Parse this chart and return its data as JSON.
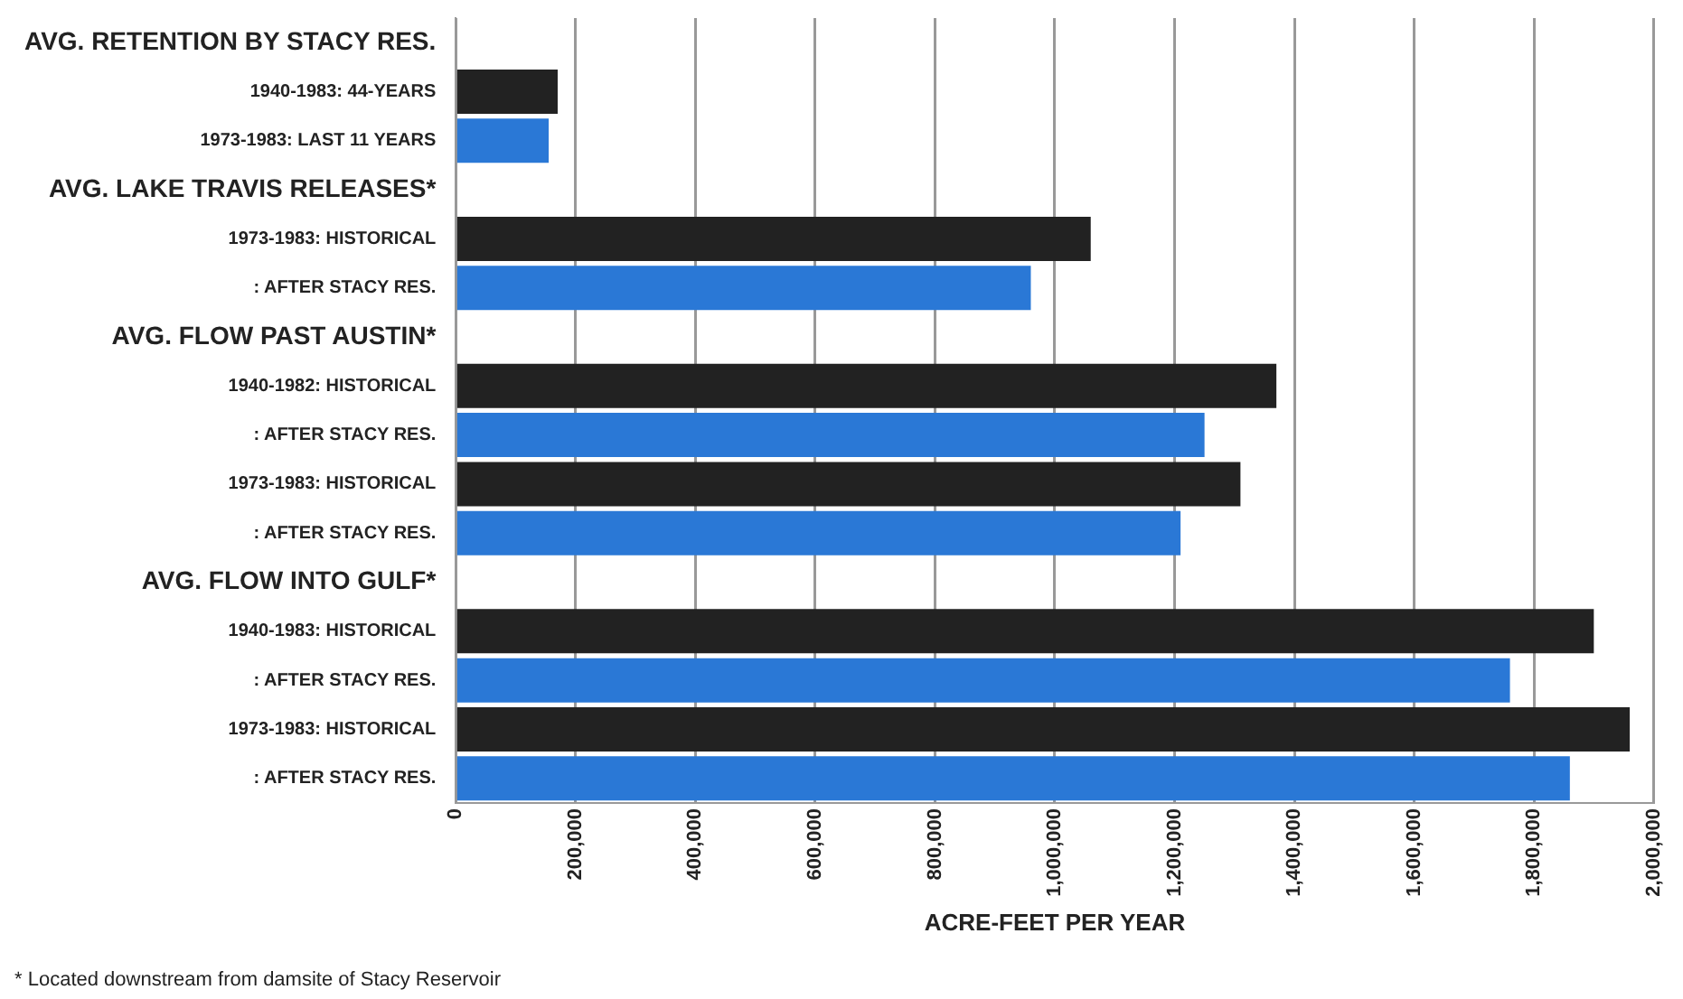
{
  "chart_data": {
    "type": "bar",
    "orientation": "horizontal",
    "xlabel": "ACRE-FEET PER YEAR",
    "categories": [
      "AVG. RETENTION BY STACY RES.",
      "1940-1983: 44-YEARS",
      "1973-1983: LAST 11 YEARS",
      "AVG. LAKE TRAVIS RELEASES*",
      "1973-1983: HISTORICAL",
      ": AFTER STACY RES.",
      "AVG. FLOW PAST AUSTIN*",
      "1940-1982: HISTORICAL",
      ": AFTER STACY RES.",
      "1973-1983: HISTORICAL",
      ": AFTER STACY RES.",
      "AVG. FLOW INTO GULF*",
      "1940-1983: HISTORICAL",
      ": AFTER STACY RES.",
      "1973-1983: HISTORICAL",
      ": AFTER STACY RES."
    ],
    "values": [
      null,
      170000,
      155000,
      null,
      1060000,
      960000,
      null,
      1370000,
      1250000,
      1310000,
      1210000,
      null,
      1900000,
      1760000,
      1960000,
      1860000
    ],
    "colors": [
      "#222222",
      "#222222",
      "#2a78d6",
      "#222222",
      "#222222",
      "#2a78d6",
      "#222222",
      "#222222",
      "#2a78d6",
      "#222222",
      "#2a78d6",
      "#222222",
      "#222222",
      "#2a78d6",
      "#222222",
      "#2a78d6"
    ],
    "xlim": [
      0,
      2000000
    ],
    "xticks": [
      0,
      {
        "value": 200000,
        "label": "200,000"
      },
      {
        "value": 400000,
        "label": "400,000"
      },
      {
        "value": 600000,
        "label": "600,000"
      },
      {
        "value": 800000,
        "label": "800,000"
      },
      {
        "value": 1000000,
        "label": "1,000,000"
      },
      {
        "value": 1200000,
        "label": "1,200,000"
      },
      {
        "value": 1400000,
        "label": "1,400,000"
      },
      {
        "value": 1600000,
        "label": "1,600,000"
      },
      {
        "value": 1800000,
        "label": "1,800,000"
      },
      {
        "value": 2000000,
        "label": "2,000,000"
      }
    ],
    "grid": "x",
    "legend": false,
    "annotations": [
      "* Located downstream from damsite of Stacy Reservoir"
    ]
  }
}
